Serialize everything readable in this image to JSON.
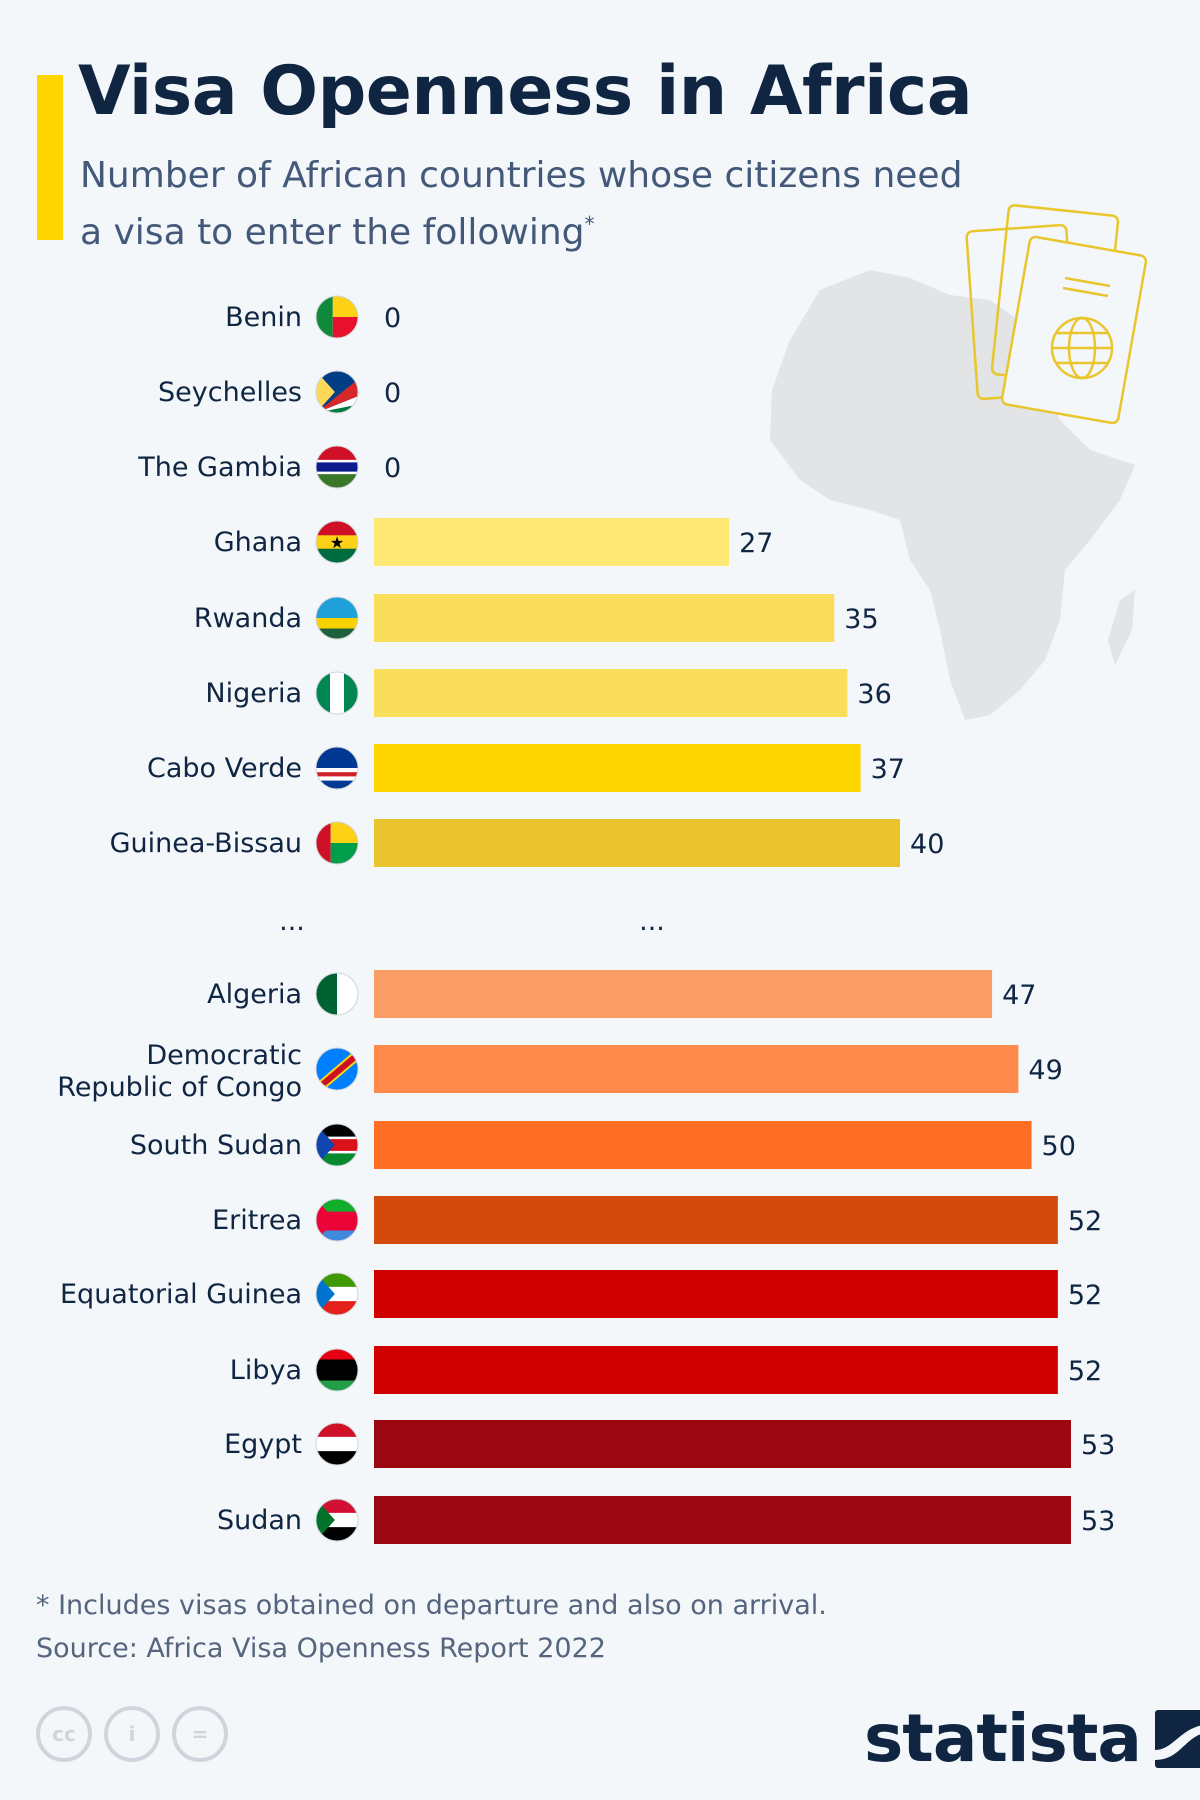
{
  "header": {
    "title": "Visa Openness in Africa",
    "subtitle": "Number of African countries whose citizens need a visa to enter the following",
    "subtitle_marker": "*"
  },
  "chart_data": {
    "type": "bar",
    "orientation": "horizontal",
    "title": "Visa Openness in Africa",
    "categories": [
      "Benin",
      "Seychelles",
      "The Gambia",
      "Ghana",
      "Rwanda",
      "Nigeria",
      "Cabo Verde",
      "Guinea-Bissau",
      "...",
      "Algeria",
      "Democratic Republic of Congo",
      "South Sudan",
      "Eritrea",
      "Equatorial Guinea",
      "Libya",
      "Egypt",
      "Sudan"
    ],
    "values": [
      0,
      0,
      0,
      27,
      35,
      36,
      37,
      40,
      null,
      47,
      49,
      50,
      52,
      52,
      52,
      53,
      53
    ],
    "colors": [
      "#ffe774",
      "#ffe774",
      "#ffe774",
      "#ffe774",
      "#f9dd5b",
      "#f9dd5b",
      "#ffd600",
      "#eac42f",
      null,
      "#fb9e66",
      "#ff8a4b",
      "#ff6e24",
      "#d44a0c",
      "#d00000",
      "#d00000",
      "#9c0812",
      "#9c0812"
    ],
    "gap_label": "...",
    "xlim": [
      0,
      53
    ],
    "grid": false
  },
  "footer": {
    "footnote": "* Includes visas obtained on departure and also on arrival.",
    "source": "Source: Africa Visa Openness Report 2022",
    "license_icons": [
      "cc",
      "i",
      "="
    ],
    "brand": "statista"
  }
}
